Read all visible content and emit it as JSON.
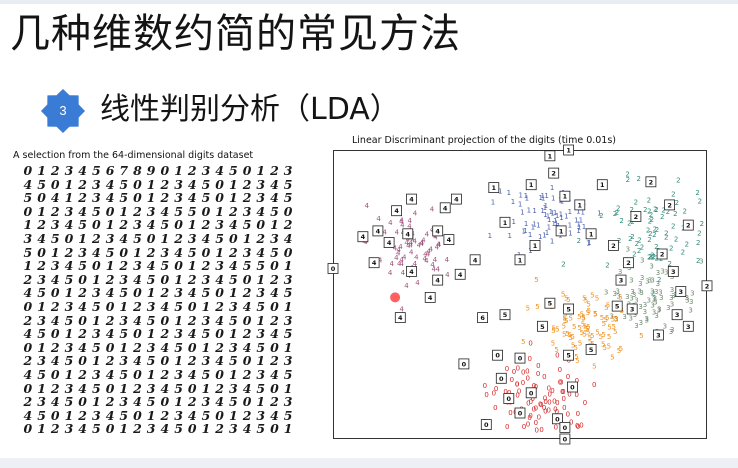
{
  "slide": {
    "title": "几种维数约简的常见方法",
    "badge_number": "3",
    "subtitle": "线性判别分析（LDA）",
    "left_caption": "A selection from the 64-dimensional digits dataset",
    "right_caption": "Linear Discriminant projection of the digits (time 0.01s)"
  },
  "digit_rows": [
    "01234567890123450123",
    "45012345012345012345",
    "50412345012345012345",
    "01234501234550123450",
    "12345012345012345012",
    "34501234501234501234",
    "50123450123450123450",
    "12345012345012345501",
    "23450123450123450123",
    "45012345012345012345",
    "01234501234501234501",
    "23450123450123450123",
    "45012345012345012345",
    "01234501234501234501",
    "23450123450123450123",
    "45012345012345012345",
    "01234501234501234501",
    "23450123450123450123",
    "45012345012345012345",
    "01234501234501234501"
  ],
  "chart_data": {
    "type": "scatter",
    "title": "Linear Discriminant projection of the digits (time 0.01s)",
    "colors": {
      "0": "#d62728",
      "1": "#4a5fb0",
      "2": "#2e8b7a",
      "3": "#6e8b6e",
      "4": "#a0527e",
      "5": "#f28e1c"
    },
    "clusters": [
      {
        "label": "0",
        "center": [
          0.55,
          0.86
        ],
        "spread": [
          0.07,
          0.07
        ],
        "count": 90
      },
      {
        "label": "1",
        "center": [
          0.58,
          0.24
        ],
        "spread": [
          0.07,
          0.06
        ],
        "count": 80
      },
      {
        "label": "2",
        "center": [
          0.86,
          0.3
        ],
        "spread": [
          0.07,
          0.09
        ],
        "count": 80
      },
      {
        "label": "3",
        "center": [
          0.85,
          0.52
        ],
        "spread": [
          0.06,
          0.05
        ],
        "count": 70
      },
      {
        "label": "4",
        "center": [
          0.21,
          0.33
        ],
        "spread": [
          0.06,
          0.07
        ],
        "count": 75
      },
      {
        "label": "5",
        "center": [
          0.68,
          0.61
        ],
        "spread": [
          0.06,
          0.06
        ],
        "count": 85
      }
    ],
    "annotations": [
      {
        "label": "4",
        "x": 0.08,
        "y": 0.3
      },
      {
        "label": "4",
        "x": 0.17,
        "y": 0.21
      },
      {
        "label": "4",
        "x": 0.21,
        "y": 0.17
      },
      {
        "label": "4",
        "x": 0.2,
        "y": 0.29
      },
      {
        "label": "4",
        "x": 0.3,
        "y": 0.2
      },
      {
        "label": "4",
        "x": 0.33,
        "y": 0.17
      },
      {
        "label": "4",
        "x": 0.15,
        "y": 0.32
      },
      {
        "label": "4",
        "x": 0.28,
        "y": 0.28
      },
      {
        "label": "4",
        "x": 0.31,
        "y": 0.31
      },
      {
        "label": "4",
        "x": 0.21,
        "y": 0.42
      },
      {
        "label": "4",
        "x": 0.28,
        "y": 0.45
      },
      {
        "label": "4",
        "x": 0.26,
        "y": 0.51
      },
      {
        "label": "4",
        "x": 0.11,
        "y": 0.39
      },
      {
        "label": "4",
        "x": 0.12,
        "y": 0.28
      },
      {
        "label": "4",
        "x": 0.34,
        "y": 0.43
      },
      {
        "label": "4",
        "x": 0.18,
        "y": 0.58
      },
      {
        "label": "4",
        "x": 0.38,
        "y": 0.38
      },
      {
        "label": "1",
        "x": 0.43,
        "y": 0.13
      },
      {
        "label": "1",
        "x": 0.53,
        "y": 0.12
      },
      {
        "label": "1",
        "x": 0.58,
        "y": 0.02
      },
      {
        "label": "1",
        "x": 0.62,
        "y": 0.16
      },
      {
        "label": "1",
        "x": 0.66,
        "y": 0.19
      },
      {
        "label": "1",
        "x": 0.54,
        "y": 0.33
      },
      {
        "label": "1",
        "x": 0.46,
        "y": 0.25
      },
      {
        "label": "1",
        "x": 0.5,
        "y": 0.38
      },
      {
        "label": "1",
        "x": 0.61,
        "y": 0.28
      },
      {
        "label": "1",
        "x": 0.69,
        "y": 0.29
      },
      {
        "label": "1",
        "x": 0.72,
        "y": 0.12
      },
      {
        "label": "2",
        "x": 0.85,
        "y": 0.11
      },
      {
        "label": "2",
        "x": 0.9,
        "y": 0.19
      },
      {
        "label": "2",
        "x": 0.95,
        "y": 0.26
      },
      {
        "label": "2",
        "x": 0.81,
        "y": 0.23
      },
      {
        "label": "2",
        "x": 0.75,
        "y": 0.33
      },
      {
        "label": "2",
        "x": 0.88,
        "y": 0.36
      },
      {
        "label": "2",
        "x": 1.0,
        "y": 0.47
      },
      {
        "label": "2",
        "x": 0.79,
        "y": 0.39
      },
      {
        "label": "3",
        "x": 0.91,
        "y": 0.42
      },
      {
        "label": "3",
        "x": 0.93,
        "y": 0.49
      },
      {
        "label": "3",
        "x": 0.92,
        "y": 0.57
      },
      {
        "label": "3",
        "x": 0.95,
        "y": 0.61
      },
      {
        "label": "3",
        "x": 0.8,
        "y": 0.55
      },
      {
        "label": "3",
        "x": 0.87,
        "y": 0.64
      },
      {
        "label": "3",
        "x": 0.77,
        "y": 0.45
      },
      {
        "label": "5",
        "x": 0.58,
        "y": 0.53
      },
      {
        "label": "5",
        "x": 0.63,
        "y": 0.55
      },
      {
        "label": "5",
        "x": 0.76,
        "y": 0.54
      },
      {
        "label": "5",
        "x": 0.56,
        "y": 0.61
      },
      {
        "label": "5",
        "x": 0.69,
        "y": 0.69
      },
      {
        "label": "5",
        "x": 0.63,
        "y": 0.71
      },
      {
        "label": "5",
        "x": 0.46,
        "y": 0.57
      },
      {
        "label": "6",
        "x": 0.4,
        "y": 0.58
      },
      {
        "label": "0",
        "x": 0.44,
        "y": 0.71
      },
      {
        "label": "0",
        "x": 0.5,
        "y": 0.72
      },
      {
        "label": "0",
        "x": 0.35,
        "y": 0.74
      },
      {
        "label": "0",
        "x": 0.53,
        "y": 0.84
      },
      {
        "label": "0",
        "x": 0.47,
        "y": 0.86
      },
      {
        "label": "0",
        "x": 0.5,
        "y": 0.91
      },
      {
        "label": "0",
        "x": 0.6,
        "y": 0.93
      },
      {
        "label": "0",
        "x": 0.41,
        "y": 0.95
      },
      {
        "label": "0",
        "x": 0.62,
        "y": 0.96
      },
      {
        "label": "0",
        "x": 0.64,
        "y": 0.82
      },
      {
        "label": "0",
        "x": 0.62,
        "y": 1.0
      },
      {
        "label": "0",
        "x": 0.45,
        "y": 0.79
      },
      {
        "label": "0",
        "x": 0.0,
        "y": 0.41
      },
      {
        "label": "1",
        "x": 0.63,
        "y": 0.0
      },
      {
        "label": "2",
        "x": 0.59,
        "y": 0.08
      }
    ]
  }
}
